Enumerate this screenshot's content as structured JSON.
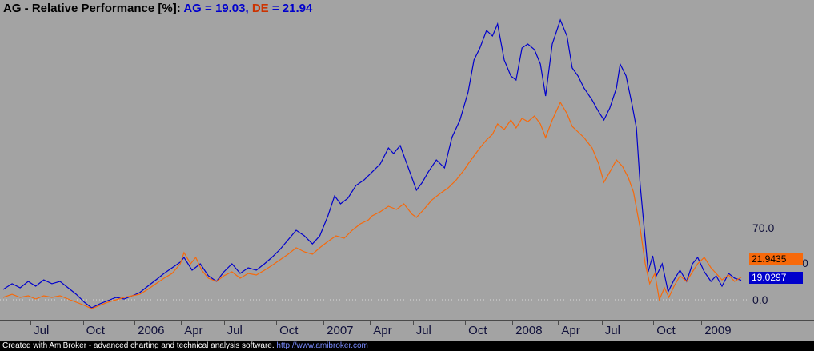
{
  "title": {
    "segments": [
      {
        "text": "AG - Relative Performance [%]",
        "color": "#000000"
      },
      {
        "text": ": ",
        "color": "#000000"
      },
      {
        "text": "AG = 19.03",
        "color": "#0000cc"
      },
      {
        "text": ", ",
        "color": "#0000cc"
      },
      {
        "text": "DE",
        "color": "#cc3300"
      },
      {
        "text": " = 21.94",
        "color": "#0000cc"
      }
    ]
  },
  "right_axis": {
    "labels": [
      {
        "text": "70.0",
        "value": 70.0
      },
      {
        "text": "0.0",
        "value": 0.0
      }
    ],
    "partial_label": "0",
    "value_boxes": [
      {
        "series": "DE",
        "text": "21.9435",
        "bg": "#f7690a",
        "fg": "#000000"
      },
      {
        "series": "AG",
        "text": "19.0297",
        "bg": "#0000cc",
        "fg": "#ffffff"
      }
    ]
  },
  "x_axis": {
    "ticks": [
      {
        "label": "Jul",
        "t": 0.037
      },
      {
        "label": "Oct",
        "t": 0.108
      },
      {
        "label": "2006",
        "t": 0.178
      },
      {
        "label": "Apr",
        "t": 0.241
      },
      {
        "label": "Jul",
        "t": 0.299
      },
      {
        "label": "Oct",
        "t": 0.37
      },
      {
        "label": "2007",
        "t": 0.434
      },
      {
        "label": "Apr",
        "t": 0.497
      },
      {
        "label": "Jul",
        "t": 0.555
      },
      {
        "label": "Oct",
        "t": 0.626
      },
      {
        "label": "2008",
        "t": 0.69
      },
      {
        "label": "Apr",
        "t": 0.752
      },
      {
        "label": "Jul",
        "t": 0.811
      },
      {
        "label": "Oct",
        "t": 0.881
      },
      {
        "label": "2009",
        "t": 0.946
      }
    ]
  },
  "footer": {
    "segments": [
      {
        "text": "Created with AmiBroker - advanced charting and technical analysis software. ",
        "color": "#ffffff"
      },
      {
        "text": "http://www.amibroker.com",
        "color": "#7a8cff"
      }
    ]
  },
  "colors": {
    "background": "#a3a3a3",
    "series_ag": "#0000cc",
    "series_de": "#f7690a",
    "gridline": "#d9d9d9",
    "axis_line": "#4a4a4a",
    "tick_label": "#10103a",
    "footer_bg": "#000000"
  },
  "chart_data": {
    "type": "line",
    "title": "AG - Relative Performance [%]",
    "ylabel": "Relative Performance [%]",
    "x_axis_tick_labels": [
      "Jul",
      "Oct",
      "2006",
      "Apr",
      "Jul",
      "Oct",
      "2007",
      "Apr",
      "Jul",
      "Oct",
      "2008",
      "Apr",
      "Jul",
      "Oct",
      "2009"
    ],
    "x_domain_note": "time axis approx mid-2005 to early-2009; point x is fraction of plot width",
    "y_axis_visible_labels": [
      70.0,
      0.0
    ],
    "ylim": [
      -19,
      292
    ],
    "zero_line": {
      "value": 0,
      "style": "dotted"
    },
    "legend_position": "in-title",
    "grid": "zero-line-only",
    "last_values": {
      "AG": 19.0297,
      "DE": 21.9435
    },
    "point_format": "[x_fraction_of_plot_width, percent_value]",
    "series": [
      {
        "name": "AG",
        "color": "#0000cc",
        "points": [
          [
            0.0,
            10.1
          ],
          [
            0.012,
            15.6
          ],
          [
            0.023,
            11.7
          ],
          [
            0.034,
            17.9
          ],
          [
            0.044,
            13.2
          ],
          [
            0.055,
            19.4
          ],
          [
            0.066,
            15.6
          ],
          [
            0.077,
            17.9
          ],
          [
            0.088,
            11.7
          ],
          [
            0.099,
            5.4
          ],
          [
            0.11,
            -2.3
          ],
          [
            0.12,
            -7.8
          ],
          [
            0.131,
            -3.9
          ],
          [
            0.142,
            -0.8
          ],
          [
            0.153,
            2.3
          ],
          [
            0.164,
            0.8
          ],
          [
            0.175,
            3.9
          ],
          [
            0.185,
            7.0
          ],
          [
            0.196,
            13.2
          ],
          [
            0.207,
            19.4
          ],
          [
            0.218,
            25.7
          ],
          [
            0.229,
            31.1
          ],
          [
            0.24,
            36.6
          ],
          [
            0.245,
            41.2
          ],
          [
            0.256,
            28.8
          ],
          [
            0.267,
            35.0
          ],
          [
            0.278,
            23.3
          ],
          [
            0.289,
            17.9
          ],
          [
            0.299,
            27.2
          ],
          [
            0.31,
            35.0
          ],
          [
            0.321,
            25.7
          ],
          [
            0.332,
            31.1
          ],
          [
            0.343,
            28.8
          ],
          [
            0.354,
            35.0
          ],
          [
            0.364,
            41.2
          ],
          [
            0.375,
            49.0
          ],
          [
            0.386,
            58.3
          ],
          [
            0.397,
            67.7
          ],
          [
            0.408,
            62.2
          ],
          [
            0.419,
            54.4
          ],
          [
            0.429,
            62.2
          ],
          [
            0.44,
            81.7
          ],
          [
            0.449,
            101.1
          ],
          [
            0.457,
            93.3
          ],
          [
            0.467,
            98.8
          ],
          [
            0.478,
            111.2
          ],
          [
            0.489,
            116.7
          ],
          [
            0.5,
            124.4
          ],
          [
            0.511,
            132.2
          ],
          [
            0.522,
            147.8
          ],
          [
            0.529,
            142.3
          ],
          [
            0.538,
            150.1
          ],
          [
            0.549,
            128.3
          ],
          [
            0.56,
            106.6
          ],
          [
            0.568,
            114.3
          ],
          [
            0.576,
            124.4
          ],
          [
            0.587,
            136.1
          ],
          [
            0.598,
            128.3
          ],
          [
            0.608,
            157.9
          ],
          [
            0.619,
            175.0
          ],
          [
            0.63,
            202.2
          ],
          [
            0.638,
            233.3
          ],
          [
            0.646,
            245.0
          ],
          [
            0.655,
            262.1
          ],
          [
            0.663,
            256.7
          ],
          [
            0.67,
            268.3
          ],
          [
            0.679,
            233.3
          ],
          [
            0.688,
            217.8
          ],
          [
            0.695,
            213.9
          ],
          [
            0.703,
            245.0
          ],
          [
            0.711,
            248.9
          ],
          [
            0.72,
            243.4
          ],
          [
            0.728,
            229.4
          ],
          [
            0.735,
            198.3
          ],
          [
            0.744,
            248.9
          ],
          [
            0.755,
            272.2
          ],
          [
            0.764,
            256.7
          ],
          [
            0.771,
            225.6
          ],
          [
            0.779,
            217.8
          ],
          [
            0.787,
            206.1
          ],
          [
            0.798,
            194.4
          ],
          [
            0.807,
            182.8
          ],
          [
            0.814,
            175.0
          ],
          [
            0.822,
            186.7
          ],
          [
            0.831,
            206.1
          ],
          [
            0.836,
            229.4
          ],
          [
            0.844,
            217.8
          ],
          [
            0.852,
            190.6
          ],
          [
            0.858,
            167.2
          ],
          [
            0.863,
            112.8
          ],
          [
            0.869,
            66.1
          ],
          [
            0.874,
            27.2
          ],
          [
            0.88,
            42.8
          ],
          [
            0.885,
            23.3
          ],
          [
            0.893,
            35.0
          ],
          [
            0.901,
            7.8
          ],
          [
            0.909,
            19.4
          ],
          [
            0.917,
            28.8
          ],
          [
            0.926,
            17.9
          ],
          [
            0.934,
            35.0
          ],
          [
            0.941,
            41.2
          ],
          [
            0.95,
            27.2
          ],
          [
            0.959,
            17.9
          ],
          [
            0.966,
            23.3
          ],
          [
            0.974,
            13.2
          ],
          [
            0.983,
            25.7
          ],
          [
            0.991,
            21.0
          ],
          [
            1.0,
            19.0
          ]
        ]
      },
      {
        "name": "DE",
        "color": "#f7690a",
        "points": [
          [
            0.0,
            2.3
          ],
          [
            0.012,
            5.4
          ],
          [
            0.023,
            2.3
          ],
          [
            0.034,
            3.9
          ],
          [
            0.044,
            0.8
          ],
          [
            0.055,
            3.9
          ],
          [
            0.066,
            2.3
          ],
          [
            0.077,
            3.9
          ],
          [
            0.088,
            0.8
          ],
          [
            0.099,
            -2.3
          ],
          [
            0.11,
            -5.4
          ],
          [
            0.12,
            -8.6
          ],
          [
            0.131,
            -5.4
          ],
          [
            0.142,
            -2.3
          ],
          [
            0.153,
            0.0
          ],
          [
            0.164,
            2.3
          ],
          [
            0.175,
            3.9
          ],
          [
            0.185,
            5.4
          ],
          [
            0.196,
            10.1
          ],
          [
            0.207,
            15.6
          ],
          [
            0.218,
            21.0
          ],
          [
            0.229,
            25.7
          ],
          [
            0.24,
            35.0
          ],
          [
            0.245,
            45.9
          ],
          [
            0.254,
            35.0
          ],
          [
            0.261,
            41.2
          ],
          [
            0.269,
            28.8
          ],
          [
            0.278,
            21.0
          ],
          [
            0.289,
            17.9
          ],
          [
            0.299,
            23.3
          ],
          [
            0.31,
            27.2
          ],
          [
            0.321,
            21.0
          ],
          [
            0.332,
            25.7
          ],
          [
            0.343,
            24.1
          ],
          [
            0.354,
            28.8
          ],
          [
            0.364,
            33.4
          ],
          [
            0.375,
            38.9
          ],
          [
            0.386,
            44.3
          ],
          [
            0.397,
            50.6
          ],
          [
            0.408,
            46.7
          ],
          [
            0.419,
            44.3
          ],
          [
            0.429,
            50.6
          ],
          [
            0.44,
            56.8
          ],
          [
            0.451,
            62.2
          ],
          [
            0.462,
            59.9
          ],
          [
            0.473,
            67.7
          ],
          [
            0.484,
            73.9
          ],
          [
            0.495,
            77.8
          ],
          [
            0.5,
            81.7
          ],
          [
            0.511,
            85.6
          ],
          [
            0.522,
            91.0
          ],
          [
            0.533,
            87.9
          ],
          [
            0.543,
            93.3
          ],
          [
            0.554,
            83.2
          ],
          [
            0.56,
            80.1
          ],
          [
            0.57,
            87.9
          ],
          [
            0.581,
            97.2
          ],
          [
            0.592,
            103.4
          ],
          [
            0.603,
            108.9
          ],
          [
            0.614,
            116.7
          ],
          [
            0.625,
            126.8
          ],
          [
            0.63,
            132.2
          ],
          [
            0.638,
            140.0
          ],
          [
            0.646,
            147.8
          ],
          [
            0.655,
            155.6
          ],
          [
            0.663,
            161.0
          ],
          [
            0.67,
            171.1
          ],
          [
            0.679,
            165.7
          ],
          [
            0.688,
            175.0
          ],
          [
            0.695,
            167.2
          ],
          [
            0.703,
            176.6
          ],
          [
            0.711,
            173.4
          ],
          [
            0.72,
            178.9
          ],
          [
            0.728,
            171.1
          ],
          [
            0.735,
            157.9
          ],
          [
            0.744,
            175.0
          ],
          [
            0.755,
            192.1
          ],
          [
            0.764,
            181.2
          ],
          [
            0.771,
            168.8
          ],
          [
            0.779,
            163.3
          ],
          [
            0.787,
            157.9
          ],
          [
            0.798,
            147.8
          ],
          [
            0.807,
            132.2
          ],
          [
            0.814,
            114.3
          ],
          [
            0.822,
            124.4
          ],
          [
            0.831,
            136.1
          ],
          [
            0.839,
            129.9
          ],
          [
            0.847,
            119.0
          ],
          [
            0.854,
            105.0
          ],
          [
            0.863,
            70.0
          ],
          [
            0.87,
            35.0
          ],
          [
            0.876,
            15.6
          ],
          [
            0.883,
            25.7
          ],
          [
            0.889,
            0.0
          ],
          [
            0.896,
            11.7
          ],
          [
            0.902,
            2.3
          ],
          [
            0.909,
            13.2
          ],
          [
            0.917,
            23.3
          ],
          [
            0.926,
            17.9
          ],
          [
            0.934,
            27.2
          ],
          [
            0.941,
            35.0
          ],
          [
            0.95,
            41.2
          ],
          [
            0.959,
            31.1
          ],
          [
            0.966,
            25.7
          ],
          [
            0.974,
            19.4
          ],
          [
            0.983,
            24.1
          ],
          [
            0.991,
            17.9
          ],
          [
            1.0,
            21.9
          ]
        ]
      }
    ]
  }
}
